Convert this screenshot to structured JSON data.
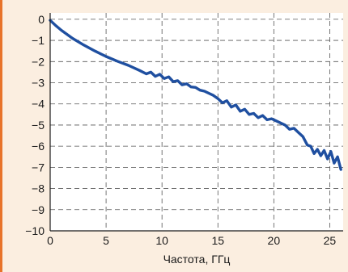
{
  "chart_data": {
    "type": "line",
    "title": "",
    "xlabel": "Частота, ГГц",
    "ylabel": "",
    "xlim": [
      0,
      26.2
    ],
    "ylim": [
      -10,
      0.3
    ],
    "xticks": [
      0,
      5,
      10,
      15,
      20,
      25
    ],
    "yticks": [
      0,
      -1,
      -2,
      -3,
      -4,
      -5,
      -6,
      -7,
      -8,
      -9,
      -10
    ],
    "xtick_labels": [
      "0",
      "5",
      "10",
      "15",
      "20",
      "25"
    ],
    "ytick_labels": [
      "0",
      "−1",
      "−2",
      "−3",
      "−4",
      "−5",
      "−6",
      "−7",
      "−8",
      "−9",
      "−10"
    ],
    "grid": true,
    "series": [
      {
        "color": "#1f4fa0",
        "x": [
          0,
          0.5,
          1,
          2,
          3,
          4,
          5,
          6,
          7,
          8,
          8.6,
          9,
          9.4,
          9.8,
          10.2,
          10.6,
          11,
          11.4,
          11.8,
          12.2,
          12.6,
          13,
          13.4,
          13.8,
          14.2,
          14.6,
          15,
          15.4,
          15.8,
          16.2,
          16.6,
          17,
          17.4,
          17.8,
          18.2,
          18.6,
          19,
          19.4,
          19.8,
          20.2,
          20.6,
          21,
          21.4,
          21.8,
          22.2,
          22.6,
          23,
          23.3,
          23.6,
          23.9,
          24.2,
          24.5,
          24.8,
          25.1,
          25.4,
          25.7,
          26.0
        ],
        "y": [
          -0.05,
          -0.3,
          -0.52,
          -0.9,
          -1.22,
          -1.5,
          -1.76,
          -1.98,
          -2.18,
          -2.42,
          -2.58,
          -2.5,
          -2.7,
          -2.6,
          -2.8,
          -2.72,
          -2.95,
          -2.9,
          -3.1,
          -3.05,
          -3.2,
          -3.22,
          -3.35,
          -3.4,
          -3.5,
          -3.6,
          -3.75,
          -3.95,
          -3.85,
          -4.15,
          -4.05,
          -4.35,
          -4.25,
          -4.5,
          -4.45,
          -4.65,
          -4.55,
          -4.75,
          -4.7,
          -4.8,
          -4.9,
          -5.0,
          -5.2,
          -5.15,
          -5.35,
          -5.55,
          -5.95,
          -6.0,
          -6.35,
          -6.15,
          -6.45,
          -6.2,
          -6.6,
          -6.25,
          -6.8,
          -6.5,
          -7.1
        ]
      }
    ]
  }
}
